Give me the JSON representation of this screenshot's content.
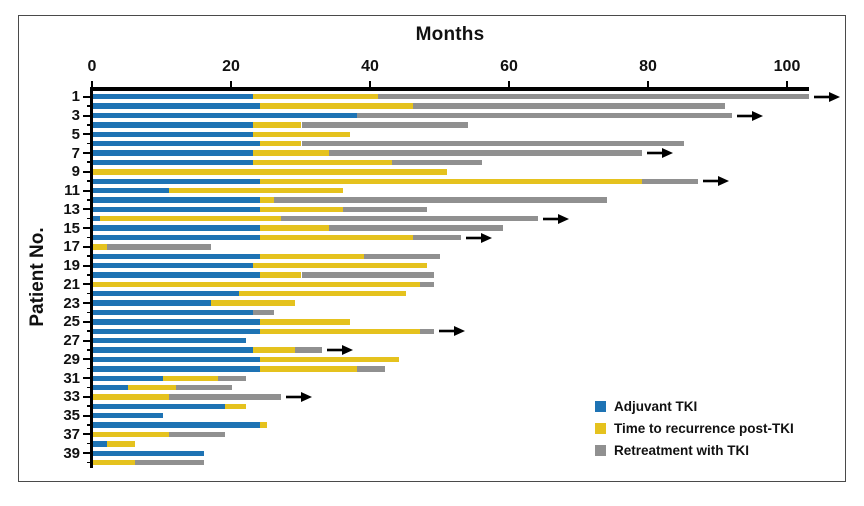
{
  "figure": {
    "title": "Months",
    "y_axis_label": "Patient No."
  },
  "legend": {
    "position": "bottom-right",
    "items": [
      {
        "series": "adjuvant",
        "label": "Adjuvant TKI",
        "color": "#1E73B4"
      },
      {
        "series": "recurrence",
        "label": "Time to recurrence post-TKI",
        "color": "#E5C21E"
      },
      {
        "series": "retreat",
        "label": "Retreatment with TKI",
        "color": "#909090"
      }
    ]
  },
  "chart_data": {
    "type": "bar",
    "orientation": "horizontal-stacked",
    "title": "Months",
    "xlabel": "Months",
    "ylabel": "Patient No.",
    "xlim": [
      0,
      104
    ],
    "x_ticks": [
      0,
      20,
      40,
      60,
      80,
      100
    ],
    "y_tick_labels": [
      1,
      3,
      5,
      7,
      9,
      11,
      13,
      15,
      17,
      19,
      21,
      23,
      25,
      27,
      29,
      31,
      33,
      35,
      37,
      39
    ],
    "grid": false,
    "annotation_meaning": {
      "arrow": "treatment ongoing"
    },
    "colors": {
      "adjuvant": "#1E73B4",
      "recurrence": "#E5C21E",
      "retreat": "#909090"
    },
    "patients": [
      {
        "patient": 1,
        "arrow": true,
        "segments": [
          {
            "series": "adjuvant",
            "start": 0,
            "end": 23
          },
          {
            "series": "recurrence",
            "start": 23,
            "end": 41
          },
          {
            "series": "retreat",
            "start": 41,
            "end": 103
          }
        ]
      },
      {
        "patient": 2,
        "arrow": false,
        "segments": [
          {
            "series": "adjuvant",
            "start": 0,
            "end": 24
          },
          {
            "series": "recurrence",
            "start": 24,
            "end": 46
          },
          {
            "series": "retreat",
            "start": 46,
            "end": 91
          }
        ]
      },
      {
        "patient": 3,
        "arrow": true,
        "segments": [
          {
            "series": "adjuvant",
            "start": 0,
            "end": 38
          },
          {
            "series": "retreat",
            "start": 38,
            "end": 92
          }
        ]
      },
      {
        "patient": 4,
        "arrow": false,
        "segments": [
          {
            "series": "adjuvant",
            "start": 0,
            "end": 23
          },
          {
            "series": "recurrence",
            "start": 23,
            "end": 30
          },
          {
            "series": "retreat",
            "start": 30,
            "end": 54
          }
        ]
      },
      {
        "patient": 5,
        "arrow": false,
        "segments": [
          {
            "series": "adjuvant",
            "start": 0,
            "end": 23
          },
          {
            "series": "recurrence",
            "start": 23,
            "end": 37
          }
        ]
      },
      {
        "patient": 6,
        "arrow": false,
        "segments": [
          {
            "series": "adjuvant",
            "start": 0,
            "end": 24
          },
          {
            "series": "recurrence",
            "start": 24,
            "end": 30
          },
          {
            "series": "retreat",
            "start": 30,
            "end": 85
          }
        ]
      },
      {
        "patient": 7,
        "arrow": true,
        "segments": [
          {
            "series": "adjuvant",
            "start": 0,
            "end": 23
          },
          {
            "series": "recurrence",
            "start": 23,
            "end": 34
          },
          {
            "series": "retreat",
            "start": 34,
            "end": 79
          }
        ]
      },
      {
        "patient": 8,
        "arrow": false,
        "segments": [
          {
            "series": "adjuvant",
            "start": 0,
            "end": 23
          },
          {
            "series": "recurrence",
            "start": 23,
            "end": 43
          },
          {
            "series": "retreat",
            "start": 43,
            "end": 56
          }
        ]
      },
      {
        "patient": 9,
        "arrow": false,
        "segments": [
          {
            "series": "recurrence",
            "start": 0,
            "end": 51
          }
        ]
      },
      {
        "patient": 10,
        "arrow": true,
        "segments": [
          {
            "series": "adjuvant",
            "start": 0,
            "end": 24
          },
          {
            "series": "recurrence",
            "start": 24,
            "end": 79
          },
          {
            "series": "retreat",
            "start": 79,
            "end": 87
          }
        ]
      },
      {
        "patient": 11,
        "arrow": false,
        "segments": [
          {
            "series": "adjuvant",
            "start": 0,
            "end": 11
          },
          {
            "series": "recurrence",
            "start": 11,
            "end": 36
          }
        ]
      },
      {
        "patient": 12,
        "arrow": false,
        "segments": [
          {
            "series": "adjuvant",
            "start": 0,
            "end": 24
          },
          {
            "series": "recurrence",
            "start": 24,
            "end": 26
          },
          {
            "series": "retreat",
            "start": 26,
            "end": 74
          }
        ]
      },
      {
        "patient": 13,
        "arrow": false,
        "segments": [
          {
            "series": "adjuvant",
            "start": 0,
            "end": 24
          },
          {
            "series": "recurrence",
            "start": 24,
            "end": 36
          },
          {
            "series": "retreat",
            "start": 36,
            "end": 48
          }
        ]
      },
      {
        "patient": 14,
        "arrow": true,
        "segments": [
          {
            "series": "adjuvant",
            "start": 0,
            "end": 1
          },
          {
            "series": "recurrence",
            "start": 1,
            "end": 27
          },
          {
            "series": "retreat",
            "start": 27,
            "end": 64
          }
        ]
      },
      {
        "patient": 15,
        "arrow": false,
        "segments": [
          {
            "series": "adjuvant",
            "start": 0,
            "end": 24
          },
          {
            "series": "recurrence",
            "start": 24,
            "end": 34
          },
          {
            "series": "retreat",
            "start": 34,
            "end": 59
          }
        ]
      },
      {
        "patient": 16,
        "arrow": true,
        "segments": [
          {
            "series": "adjuvant",
            "start": 0,
            "end": 24
          },
          {
            "series": "recurrence",
            "start": 24,
            "end": 46
          },
          {
            "series": "retreat",
            "start": 46,
            "end": 53
          }
        ]
      },
      {
        "patient": 17,
        "arrow": false,
        "segments": [
          {
            "series": "recurrence",
            "start": 0,
            "end": 2
          },
          {
            "series": "retreat",
            "start": 2,
            "end": 17
          }
        ]
      },
      {
        "patient": 18,
        "arrow": false,
        "segments": [
          {
            "series": "adjuvant",
            "start": 0,
            "end": 24
          },
          {
            "series": "recurrence",
            "start": 24,
            "end": 39
          },
          {
            "series": "retreat",
            "start": 39,
            "end": 50
          }
        ]
      },
      {
        "patient": 19,
        "arrow": false,
        "segments": [
          {
            "series": "adjuvant",
            "start": 0,
            "end": 23
          },
          {
            "series": "recurrence",
            "start": 23,
            "end": 48
          }
        ]
      },
      {
        "patient": 20,
        "arrow": false,
        "segments": [
          {
            "series": "adjuvant",
            "start": 0,
            "end": 24
          },
          {
            "series": "recurrence",
            "start": 24,
            "end": 30
          },
          {
            "series": "retreat",
            "start": 30,
            "end": 49
          }
        ]
      },
      {
        "patient": 21,
        "arrow": false,
        "segments": [
          {
            "series": "recurrence",
            "start": 0,
            "end": 47
          },
          {
            "series": "retreat",
            "start": 47,
            "end": 49
          }
        ]
      },
      {
        "patient": 22,
        "arrow": false,
        "segments": [
          {
            "series": "adjuvant",
            "start": 0,
            "end": 21
          },
          {
            "series": "recurrence",
            "start": 21,
            "end": 45
          }
        ]
      },
      {
        "patient": 23,
        "arrow": false,
        "segments": [
          {
            "series": "adjuvant",
            "start": 0,
            "end": 17
          },
          {
            "series": "recurrence",
            "start": 17,
            "end": 29
          }
        ]
      },
      {
        "patient": 24,
        "arrow": false,
        "segments": [
          {
            "series": "adjuvant",
            "start": 0,
            "end": 23
          },
          {
            "series": "retreat",
            "start": 23,
            "end": 26
          }
        ]
      },
      {
        "patient": 25,
        "arrow": false,
        "segments": [
          {
            "series": "adjuvant",
            "start": 0,
            "end": 24
          },
          {
            "series": "recurrence",
            "start": 24,
            "end": 37
          }
        ]
      },
      {
        "patient": 26,
        "arrow": true,
        "segments": [
          {
            "series": "adjuvant",
            "start": 0,
            "end": 24
          },
          {
            "series": "recurrence",
            "start": 24,
            "end": 47
          },
          {
            "series": "retreat",
            "start": 47,
            "end": 49
          }
        ]
      },
      {
        "patient": 27,
        "arrow": false,
        "segments": [
          {
            "series": "adjuvant",
            "start": 0,
            "end": 22
          }
        ]
      },
      {
        "patient": 28,
        "arrow": true,
        "segments": [
          {
            "series": "adjuvant",
            "start": 0,
            "end": 23
          },
          {
            "series": "recurrence",
            "start": 23,
            "end": 29
          },
          {
            "series": "retreat",
            "start": 29,
            "end": 33
          }
        ]
      },
      {
        "patient": 29,
        "arrow": false,
        "segments": [
          {
            "series": "adjuvant",
            "start": 0,
            "end": 24
          },
          {
            "series": "recurrence",
            "start": 24,
            "end": 44
          }
        ]
      },
      {
        "patient": 30,
        "arrow": false,
        "segments": [
          {
            "series": "adjuvant",
            "start": 0,
            "end": 24
          },
          {
            "series": "recurrence",
            "start": 24,
            "end": 38
          },
          {
            "series": "retreat",
            "start": 38,
            "end": 42
          }
        ]
      },
      {
        "patient": 31,
        "arrow": false,
        "segments": [
          {
            "series": "adjuvant",
            "start": 0,
            "end": 10
          },
          {
            "series": "recurrence",
            "start": 10,
            "end": 18
          },
          {
            "series": "retreat",
            "start": 18,
            "end": 22
          }
        ]
      },
      {
        "patient": 32,
        "arrow": false,
        "segments": [
          {
            "series": "adjuvant",
            "start": 0,
            "end": 5
          },
          {
            "series": "recurrence",
            "start": 5,
            "end": 12
          },
          {
            "series": "retreat",
            "start": 12,
            "end": 20
          }
        ]
      },
      {
        "patient": 33,
        "arrow": true,
        "segments": [
          {
            "series": "recurrence",
            "start": 0,
            "end": 11
          },
          {
            "series": "retreat",
            "start": 11,
            "end": 27
          }
        ]
      },
      {
        "patient": 34,
        "arrow": false,
        "segments": [
          {
            "series": "adjuvant",
            "start": 0,
            "end": 19
          },
          {
            "series": "recurrence",
            "start": 19,
            "end": 22
          }
        ]
      },
      {
        "patient": 35,
        "arrow": false,
        "segments": [
          {
            "series": "adjuvant",
            "start": 0,
            "end": 10
          }
        ]
      },
      {
        "patient": 36,
        "arrow": false,
        "segments": [
          {
            "series": "adjuvant",
            "start": 0,
            "end": 24
          },
          {
            "series": "recurrence",
            "start": 24,
            "end": 25
          }
        ]
      },
      {
        "patient": 37,
        "arrow": false,
        "segments": [
          {
            "series": "recurrence",
            "start": 0,
            "end": 11
          },
          {
            "series": "retreat",
            "start": 11,
            "end": 19
          }
        ]
      },
      {
        "patient": 38,
        "arrow": false,
        "segments": [
          {
            "series": "adjuvant",
            "start": 0,
            "end": 2
          },
          {
            "series": "recurrence",
            "start": 2,
            "end": 6
          }
        ]
      },
      {
        "patient": 39,
        "arrow": false,
        "segments": [
          {
            "series": "adjuvant",
            "start": 0,
            "end": 16
          }
        ]
      },
      {
        "patient": 40,
        "arrow": false,
        "segments": [
          {
            "series": "recurrence",
            "start": 0,
            "end": 6
          },
          {
            "series": "retreat",
            "start": 6,
            "end": 16
          }
        ]
      }
    ]
  }
}
